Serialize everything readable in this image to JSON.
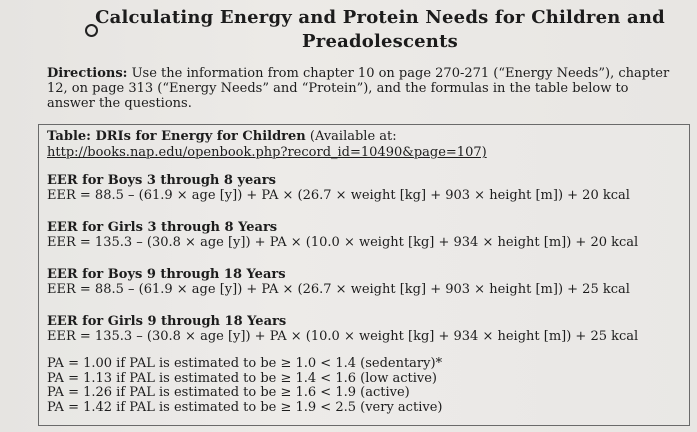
{
  "title_line1": "Calculating Energy and Protein Needs for Children and",
  "title_line2": "Preadolescents",
  "directions": {
    "label": "Directions:",
    "text": "Use the information from chapter 10 on page 270-271 (“Energy Needs”), chapter 12, on page 313 (“Energy Needs” and “Protein”), and the formulas in the table below to answer the questions."
  },
  "table": {
    "label": "Table: DRIs for Energy for Children",
    "available": "(Available at:",
    "url": "http://books.nap.edu/openbook.php?record_id=10490&page=107)",
    "sections": [
      {
        "heading": "EER for Boys 3 through 8 years",
        "formula": "EER = 88.5 – (61.9 × age [y]) + PA × (26.7 × weight [kg] + 903 × height [m]) + 20 kcal"
      },
      {
        "heading": "EER for Girls 3 through 8 Years",
        "formula": "EER = 135.3 – (30.8 × age [y]) + PA × (10.0 × weight [kg] + 934 × height [m]) + 20 kcal"
      },
      {
        "heading": "EER for Boys 9 through 18 Years",
        "formula": "EER = 88.5 – (61.9 × age [y]) + PA × (26.7 × weight [kg] + 903 × height [m]) + 25 kcal"
      },
      {
        "heading": "EER for Girls 9 through 18 Years",
        "formula": "EER = 135.3 – (30.8 × age [y]) + PA × (10.0 × weight [kg] + 934 × height [m]) + 25 kcal"
      }
    ],
    "pa_lines": [
      "PA = 1.00 if PAL is estimated to be ≥ 1.0 < 1.4 (sedentary)*",
      "PA = 1.13 if PAL is estimated to be ≥ 1.4 < 1.6 (low active)",
      "PA = 1.26 if PAL is estimated to be ≥ 1.6 < 1.9 (active)",
      "PA = 1.42 if PAL is estimated to be ≥ 1.9 < 2.5 (very active)"
    ]
  }
}
